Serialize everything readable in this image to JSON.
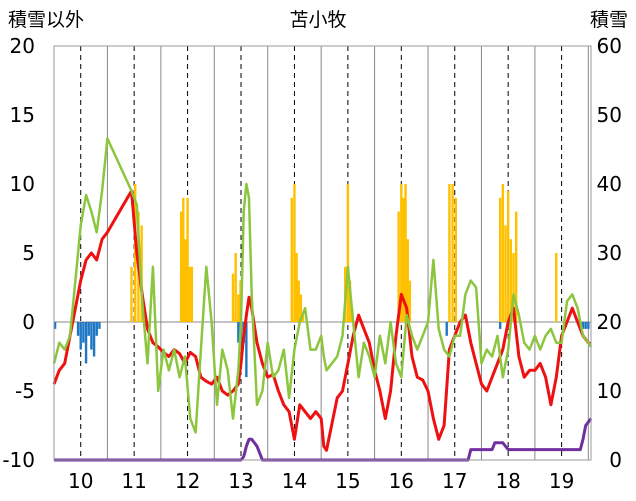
{
  "chart_data": {
    "type": "bar+line",
    "title": "苫小牧",
    "left_axis_label": "積雪以外",
    "right_axis_label": "積雪",
    "left_ylim": [
      -10,
      20
    ],
    "right_ylim": [
      0,
      60
    ],
    "left_ticks": [
      "20",
      "15",
      "10",
      "5",
      "0",
      "-5",
      "-10"
    ],
    "right_ticks": [
      "60",
      "50",
      "40",
      "30",
      "20",
      "10",
      "0"
    ],
    "x_ticks": [
      "10",
      "11",
      "12",
      "13",
      "14",
      "15",
      "16",
      "17",
      "18",
      "19"
    ],
    "xlim": [
      9.5,
      19.55
    ],
    "grid": "dashed vertical lines at day centers, solid vertical lines at day boundaries",
    "colors": {
      "red": "#ee1111",
      "green": "#8cc63f",
      "orange": "#ffc000",
      "blue": "#1f77c4",
      "purple": "#7030a0"
    },
    "series": [
      {
        "color": "red",
        "type": "line",
        "axis": "left",
        "x": [
          9.5,
          9.6,
          9.7,
          9.8,
          9.9,
          10.0,
          10.1,
          10.2,
          10.3,
          10.4,
          10.5,
          10.95,
          11.05,
          11.15,
          11.25,
          11.35,
          11.45,
          11.55,
          11.65,
          11.75,
          11.85,
          11.95,
          12.05,
          12.15,
          12.25,
          12.35,
          12.45,
          12.55,
          12.65,
          12.75,
          12.85,
          12.95,
          13.0,
          13.05,
          13.1,
          13.15,
          13.2,
          13.3,
          13.4,
          13.5,
          13.6,
          13.7,
          13.8,
          13.9,
          14.0,
          14.1,
          14.2,
          14.3,
          14.4,
          14.5,
          14.55,
          14.6,
          14.8,
          14.9,
          15.0,
          15.1,
          15.2,
          15.3,
          15.4,
          15.5,
          15.6,
          15.7,
          15.8,
          15.9,
          16.0,
          16.1,
          16.2,
          16.3,
          16.4,
          16.5,
          16.6,
          16.7,
          16.8,
          16.9,
          17.0,
          17.1,
          17.2,
          17.3,
          17.4,
          17.5,
          17.6,
          17.7,
          17.8,
          17.9,
          18.0,
          18.1,
          18.2,
          18.3,
          18.4,
          18.5,
          18.6,
          18.7,
          18.8,
          18.9,
          19.0,
          19.1,
          19.2,
          19.3,
          19.4,
          19.5,
          19.55
        ],
        "y": [
          -4.5,
          -3.5,
          -3,
          -1,
          1,
          3,
          4.5,
          5,
          4.5,
          6,
          6.5,
          9.5,
          5,
          2,
          -0.5,
          -1.5,
          -1.8,
          -2.2,
          -2.5,
          -2,
          -2.3,
          -3,
          -2.2,
          -2.5,
          -4,
          -4.3,
          -4.5,
          -4,
          -5,
          -5.3,
          -5,
          -4.5,
          -3,
          -1,
          0.5,
          1.8,
          1,
          -1.5,
          -3,
          -4,
          -3.8,
          -5,
          -6,
          -6.5,
          -8.5,
          -6,
          -6.5,
          -7,
          -6.5,
          -7,
          -9,
          -9.3,
          -5.5,
          -5,
          -3,
          -1,
          0.5,
          -0.5,
          -1.5,
          -3.5,
          -5,
          -7,
          -5,
          -1,
          2,
          1,
          -2.5,
          -4,
          -4.2,
          -5,
          -7,
          -8.5,
          -7.5,
          -2,
          -1,
          0,
          0.5,
          -1.5,
          -3,
          -4.5,
          -5,
          -4,
          -3,
          -2,
          0,
          1,
          -2.5,
          -4,
          -3.5,
          -3.5,
          -3,
          -4,
          -6,
          -4,
          -1,
          0,
          1,
          0,
          -1,
          -1.5,
          -1.6
        ]
      },
      {
        "color": "green",
        "type": "line",
        "axis": "left",
        "x": [
          9.5,
          9.6,
          9.7,
          9.8,
          9.9,
          10.0,
          10.1,
          10.2,
          10.3,
          10.4,
          10.5,
          10.95,
          11.05,
          11.15,
          11.25,
          11.35,
          11.45,
          11.55,
          11.65,
          11.75,
          11.85,
          11.95,
          12.05,
          12.15,
          12.25,
          12.35,
          12.45,
          12.55,
          12.65,
          12.75,
          12.85,
          12.95,
          13.0,
          13.05,
          13.1,
          13.15,
          13.2,
          13.3,
          13.4,
          13.5,
          13.6,
          13.7,
          13.8,
          13.9,
          14.0,
          14.1,
          14.2,
          14.3,
          14.4,
          14.5,
          14.55,
          14.6,
          14.8,
          14.9,
          15.0,
          15.1,
          15.2,
          15.3,
          15.4,
          15.5,
          15.6,
          15.7,
          15.8,
          15.9,
          16.0,
          16.1,
          16.2,
          16.3,
          16.4,
          16.5,
          16.6,
          16.7,
          16.8,
          16.9,
          17.0,
          17.1,
          17.2,
          17.3,
          17.4,
          17.5,
          17.6,
          17.7,
          17.8,
          17.9,
          18.0,
          18.1,
          18.2,
          18.3,
          18.4,
          18.5,
          18.6,
          18.7,
          18.8,
          18.9,
          19.0,
          19.1,
          19.2,
          19.3,
          19.4,
          19.5,
          19.55
        ],
        "y": [
          -3,
          -1.5,
          -2,
          -1,
          3,
          7,
          9.2,
          8,
          6.5,
          9.5,
          13.3,
          9.5,
          8.5,
          1.5,
          -3,
          4,
          -5,
          -2,
          -3.5,
          -2,
          -4,
          -2.5,
          -7,
          -8,
          -2,
          4,
          0,
          -6,
          -2,
          -3.5,
          -7,
          -3.5,
          0,
          8,
          10,
          9,
          2,
          -6,
          -5,
          -1.5,
          -4,
          -3.5,
          -2,
          -5.5,
          -2,
          0,
          1,
          -2,
          -2,
          -1,
          -2.5,
          -3.5,
          -2.5,
          -1,
          4,
          0,
          -4,
          -1.5,
          -2.5,
          -4,
          -1,
          -3,
          0,
          -3,
          -4,
          0.5,
          -1,
          -2,
          -1,
          0,
          4.5,
          -0.5,
          -2,
          -2.5,
          -1,
          -1,
          2,
          3,
          2.5,
          -3,
          -2,
          -2.5,
          -1,
          -4,
          -2,
          2,
          0.5,
          -1.5,
          -2,
          -1,
          -2,
          -1,
          -0.5,
          -1.5,
          -1.5,
          1.5,
          2,
          1,
          -1,
          -1.5,
          -1.8
        ]
      },
      {
        "color": "orange",
        "type": "bar",
        "axis": "left",
        "x": [
          10.95,
          11.02,
          11.08,
          11.14,
          11.88,
          11.92,
          11.96,
          12.0,
          12.04,
          12.08,
          12.85,
          12.9,
          12.95,
          12.99,
          13.95,
          14.0,
          14.04,
          14.08,
          14.12,
          14.16,
          14.95,
          15.0,
          15.04,
          15.08,
          15.95,
          16.0,
          16.04,
          16.08,
          16.12,
          16.16,
          16.9,
          16.96,
          17.02,
          17.85,
          17.9,
          17.95,
          18.0,
          18.05,
          18.1,
          18.15,
          18.9
        ],
        "y": [
          4,
          10,
          8,
          7,
          8,
          9,
          6,
          9,
          4,
          4,
          3.5,
          5,
          2,
          3,
          9,
          10,
          5,
          3,
          2,
          0.5,
          4,
          10,
          3,
          1,
          8,
          10,
          9,
          10,
          6,
          3,
          10,
          10,
          9,
          9,
          10,
          7,
          9.5,
          6,
          5,
          8,
          5
        ]
      },
      {
        "color": "blue",
        "type": "bar",
        "axis": "left",
        "x": [
          9.52,
          9.95,
          10.0,
          10.05,
          10.1,
          10.15,
          10.2,
          10.25,
          10.3,
          10.35,
          12.95,
          13.0,
          13.05,
          13.1,
          16.85,
          17.85,
          19.4,
          19.45,
          19.5
        ],
        "y": [
          -0.5,
          -1,
          -2,
          -1.5,
          -3,
          -1,
          -2,
          -2.5,
          -1,
          -0.5,
          -1.5,
          -2,
          -1.5,
          -4,
          -1,
          -0.5,
          -0.5,
          -0.5,
          -0.5
        ]
      },
      {
        "color": "purple",
        "type": "line",
        "axis": "right",
        "x": [
          9.5,
          13.0,
          13.05,
          13.1,
          13.15,
          13.2,
          13.3,
          13.4,
          14.0,
          15.0,
          16.0,
          17.0,
          17.25,
          17.3,
          17.7,
          17.75,
          17.9,
          18.0,
          18.05,
          19.3,
          19.35,
          19.4,
          19.45,
          19.55
        ],
        "y": [
          0,
          0,
          0.5,
          2,
          3,
          3,
          2,
          0,
          0,
          0,
          0,
          0,
          0,
          1.5,
          1.5,
          2.5,
          2.5,
          1.5,
          1.5,
          1.5,
          1.5,
          3,
          5,
          6
        ]
      }
    ]
  }
}
